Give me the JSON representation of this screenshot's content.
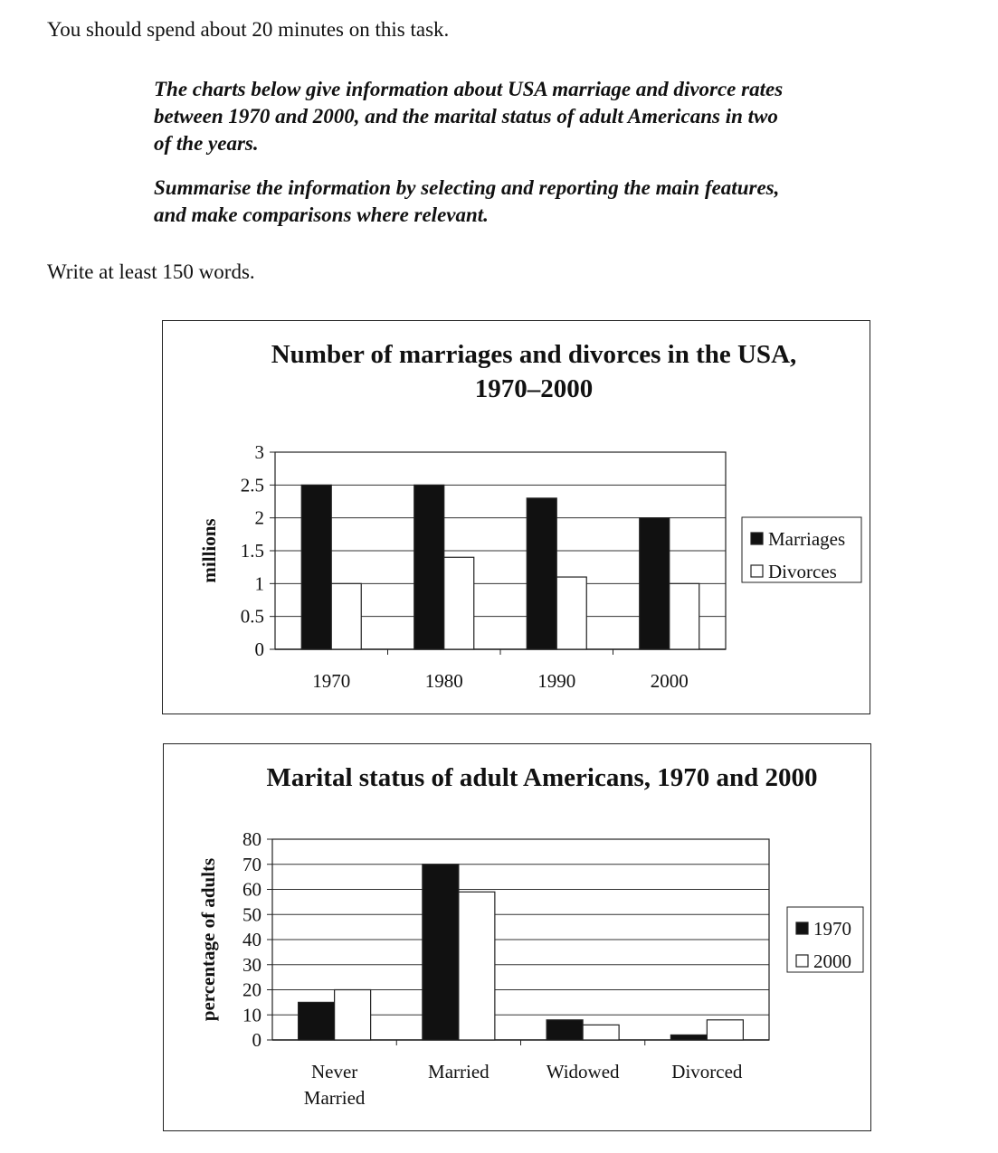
{
  "instructions": {
    "time": "You should spend about 20 minutes on this task.",
    "task_line1": "The charts below give information about USA marriage and divorce rates",
    "task_line2": "between 1970 and 2000, and the marital status of adult Americans in two",
    "task_line3": "of the years.",
    "summary_line1": "Summarise the information by selecting and reporting the main features,",
    "summary_line2": "and make comparisons where relevant.",
    "words": "Write at least 150 words."
  },
  "chart_data": [
    {
      "type": "bar",
      "title_line1": "Number of marriages and divorces in the USA,",
      "title_line2": "1970–2000",
      "ylabel": "millions",
      "xlabel": "",
      "categories": [
        "1970",
        "1980",
        "1990",
        "2000"
      ],
      "yticks": [
        "0",
        "0.5",
        "1",
        "1.5",
        "2",
        "2.5",
        "3"
      ],
      "ylim": [
        0,
        3
      ],
      "grid": true,
      "legend_position": "right",
      "series": [
        {
          "name": "Marriages",
          "values": [
            2.5,
            2.5,
            2.3,
            2.0
          ],
          "color": "#111111"
        },
        {
          "name": "Divorces",
          "values": [
            1.0,
            1.4,
            1.1,
            1.0
          ],
          "color": "#ffffff"
        }
      ]
    },
    {
      "type": "bar",
      "title_line1": "Marital status of adult Americans, 1970 and 2000",
      "ylabel": "percentage of adults",
      "xlabel": "",
      "categories": [
        "Never Married",
        "Married",
        "Widowed",
        "Divorced"
      ],
      "yticks": [
        "0",
        "10",
        "20",
        "30",
        "40",
        "50",
        "60",
        "70",
        "80"
      ],
      "ylim": [
        0,
        80
      ],
      "grid": true,
      "legend_position": "right",
      "series": [
        {
          "name": "1970",
          "values": [
            15,
            70,
            8,
            2
          ],
          "color": "#111111"
        },
        {
          "name": "2000",
          "values": [
            20,
            59,
            6,
            8
          ],
          "color": "#ffffff"
        }
      ]
    }
  ]
}
